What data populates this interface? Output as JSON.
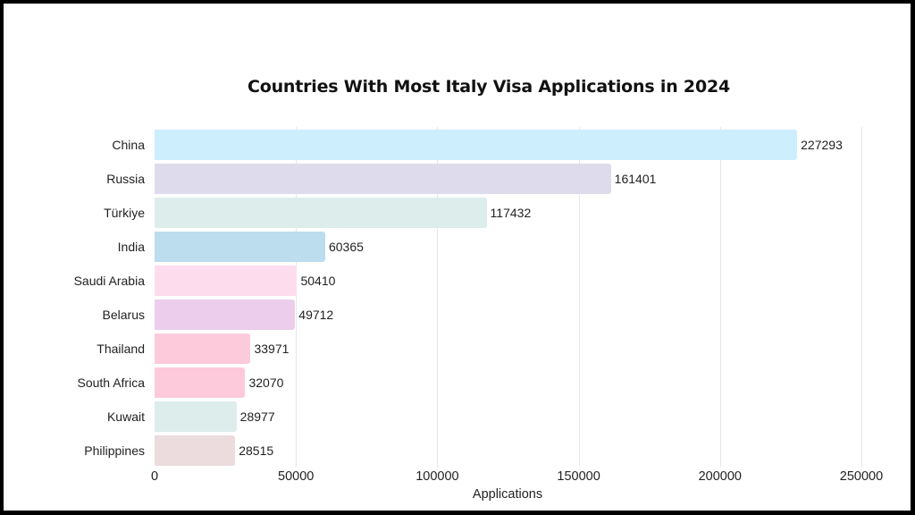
{
  "chart_data": {
    "type": "bar",
    "orientation": "horizontal",
    "title": "Countries With Most Italy Visa Applications in 2024",
    "xlabel": "Applications",
    "ylabel": "",
    "xlim": [
      0,
      250000
    ],
    "x_ticks": [
      "0",
      "50000",
      "100000",
      "150000",
      "200000",
      "250000"
    ],
    "grid": true,
    "legend": null,
    "categories": [
      "China",
      "Russia",
      "Türkiye",
      "India",
      "Saudi Arabia",
      "Belarus",
      "Thailand",
      "South Africa",
      "Kuwait",
      "Philippines"
    ],
    "values": [
      227293,
      161401,
      117432,
      60365,
      50410,
      49712,
      33971,
      32070,
      28977,
      28515
    ],
    "value_labels": [
      "227293",
      "161401",
      "117432",
      "60365",
      "50410",
      "49712",
      "33971",
      "32070",
      "28977",
      "28515"
    ],
    "colors": [
      "#cdeefd",
      "#dedcec",
      "#dcedec",
      "#bcdded",
      "#fddcee",
      "#eccdec",
      "#fdcadb",
      "#fdcadb",
      "#dcedec",
      "#ecdcdd"
    ]
  }
}
